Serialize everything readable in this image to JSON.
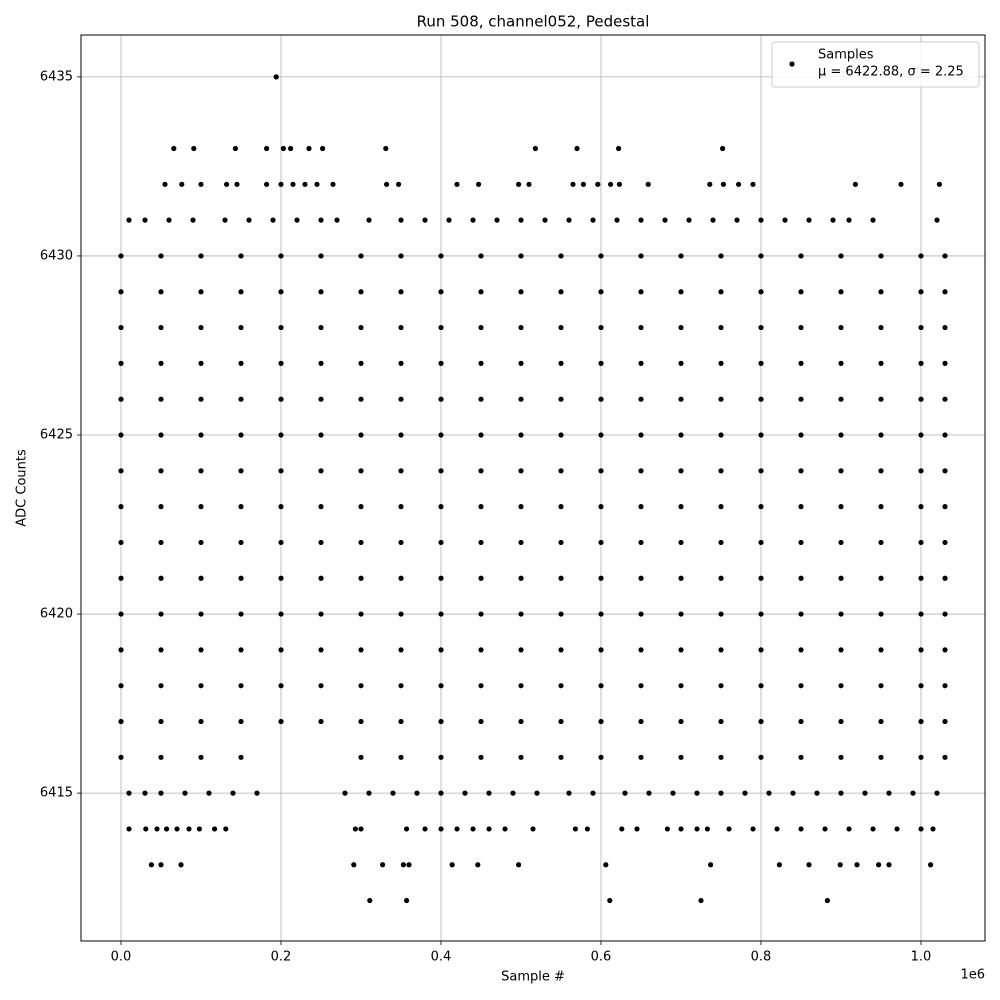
{
  "chart_data": {
    "type": "scatter",
    "title": "Run 508, channel052, Pedestal",
    "xlabel": "Sample #",
    "ylabel": "ADC Counts",
    "x_offset_label": "1e6",
    "xlim": [
      -50000,
      1080000
    ],
    "ylim": [
      6410.87,
      6436.17
    ],
    "xticks": [
      {
        "value": 0,
        "label": "0.0"
      },
      {
        "value": 200000,
        "label": "0.2"
      },
      {
        "value": 400000,
        "label": "0.4"
      },
      {
        "value": 600000,
        "label": "0.6"
      },
      {
        "value": 800000,
        "label": "0.8"
      },
      {
        "value": 1000000,
        "label": "1.0"
      }
    ],
    "yticks": [
      6415,
      6420,
      6425,
      6430,
      6435
    ],
    "grid": true,
    "legend": "upper right",
    "legend_stats": "μ = 6422.88, σ = 2.25",
    "x": [
      311000,
      357000,
      611000,
      725000,
      883000,
      38000,
      50000,
      75000,
      291000,
      327000,
      353000,
      360000,
      414000,
      446000,
      497000,
      606000,
      737000,
      823000,
      860000,
      899000,
      920000,
      947000,
      960000,
      1012000,
      10000,
      31000,
      45000,
      57000,
      70000,
      85000,
      98000,
      117000,
      131000,
      293000,
      300000,
      357000,
      380000,
      400000,
      420000,
      440000,
      460000,
      480000,
      515000,
      568000,
      583000,
      626000,
      645000,
      683000,
      700000,
      720000,
      733000,
      760000,
      790000,
      820000,
      850000,
      880000,
      910000,
      940000,
      970000,
      1000000,
      1015000,
      10000,
      30000,
      50000,
      80000,
      110000,
      140000,
      170000,
      280000,
      310000,
      340000,
      370000,
      400000,
      430000,
      460000,
      490000,
      520000,
      560000,
      590000,
      630000,
      660000,
      690000,
      720000,
      750000,
      780000,
      810000,
      840000,
      870000,
      900000,
      930000,
      960000,
      990000,
      1020000,
      0,
      50000,
      100000,
      150000,
      300000,
      350000,
      400000,
      450000,
      500000,
      550000,
      600000,
      650000,
      700000,
      750000,
      800000,
      850000,
      900000,
      950000,
      1000000,
      1030000,
      0,
      50000,
      100000,
      150000,
      200000,
      250000,
      300000,
      350000,
      400000,
      450000,
      500000,
      550000,
      600000,
      650000,
      700000,
      750000,
      800000,
      850000,
      900000,
      950000,
      1000000,
      1030000,
      0,
      50000,
      100000,
      150000,
      200000,
      250000,
      300000,
      350000,
      400000,
      450000,
      500000,
      550000,
      600000,
      650000,
      700000,
      750000,
      800000,
      850000,
      900000,
      950000,
      1000000,
      1030000,
      0,
      50000,
      100000,
      150000,
      200000,
      250000,
      300000,
      350000,
      400000,
      450000,
      500000,
      550000,
      600000,
      650000,
      700000,
      750000,
      800000,
      850000,
      900000,
      950000,
      1000000,
      1030000,
      0,
      50000,
      100000,
      150000,
      200000,
      250000,
      300000,
      350000,
      400000,
      450000,
      500000,
      550000,
      600000,
      650000,
      700000,
      750000,
      800000,
      850000,
      900000,
      950000,
      1000000,
      1030000,
      0,
      50000,
      100000,
      150000,
      200000,
      250000,
      300000,
      350000,
      400000,
      450000,
      500000,
      550000,
      600000,
      650000,
      700000,
      750000,
      800000,
      850000,
      900000,
      950000,
      1000000,
      1030000,
      0,
      50000,
      100000,
      150000,
      200000,
      250000,
      300000,
      350000,
      400000,
      450000,
      500000,
      550000,
      600000,
      650000,
      700000,
      750000,
      800000,
      850000,
      900000,
      950000,
      1000000,
      1030000,
      0,
      50000,
      100000,
      150000,
      200000,
      250000,
      300000,
      350000,
      400000,
      450000,
      500000,
      550000,
      600000,
      650000,
      700000,
      750000,
      800000,
      850000,
      900000,
      950000,
      1000000,
      1030000,
      0,
      50000,
      100000,
      150000,
      200000,
      250000,
      300000,
      350000,
      400000,
      450000,
      500000,
      550000,
      600000,
      650000,
      700000,
      750000,
      800000,
      850000,
      900000,
      950000,
      1000000,
      1030000,
      0,
      50000,
      100000,
      150000,
      200000,
      250000,
      300000,
      350000,
      400000,
      450000,
      500000,
      550000,
      600000,
      650000,
      700000,
      750000,
      800000,
      850000,
      900000,
      950000,
      1000000,
      1030000,
      0,
      50000,
      100000,
      150000,
      200000,
      250000,
      300000,
      350000,
      400000,
      450000,
      500000,
      550000,
      600000,
      650000,
      700000,
      750000,
      800000,
      850000,
      900000,
      950000,
      1000000,
      1030000,
      0,
      50000,
      100000,
      150000,
      200000,
      250000,
      300000,
      350000,
      400000,
      450000,
      500000,
      550000,
      600000,
      650000,
      700000,
      750000,
      800000,
      850000,
      900000,
      950000,
      1000000,
      1030000,
      0,
      50000,
      100000,
      150000,
      200000,
      250000,
      300000,
      350000,
      400000,
      450000,
      500000,
      550000,
      600000,
      650000,
      700000,
      750000,
      800000,
      850000,
      900000,
      950000,
      1000000,
      1030000,
      0,
      50000,
      100000,
      150000,
      200000,
      250000,
      300000,
      350000,
      400000,
      450000,
      500000,
      550000,
      600000,
      650000,
      700000,
      750000,
      800000,
      850000,
      900000,
      950000,
      1000000,
      1030000,
      0,
      50000,
      100000,
      150000,
      200000,
      250000,
      300000,
      350000,
      400000,
      450000,
      500000,
      550000,
      600000,
      650000,
      700000,
      750000,
      800000,
      850000,
      900000,
      950000,
      1000000,
      1030000,
      10000,
      30000,
      60000,
      90000,
      130000,
      160000,
      190000,
      220000,
      250000,
      270000,
      310000,
      350000,
      380000,
      410000,
      440000,
      470000,
      500000,
      530000,
      560000,
      590000,
      620000,
      650000,
      680000,
      710000,
      740000,
      770000,
      800000,
      830000,
      860000,
      890000,
      910000,
      940000,
      1020000,
      55000,
      76000,
      100000,
      132000,
      145000,
      182000,
      200000,
      215000,
      230000,
      245000,
      265000,
      332000,
      347000,
      420000,
      447000,
      497000,
      510000,
      565000,
      578000,
      596000,
      612000,
      623000,
      659000,
      736000,
      753000,
      772000,
      790000,
      918000,
      975000,
      1023000,
      66000,
      91000,
      143000,
      182000,
      203000,
      212000,
      235000,
      252000,
      331000,
      518000,
      570000,
      622000,
      752000,
      194000
    ],
    "series": [
      {
        "name": "Samples",
        "color": "#000000",
        "values": [
          6412,
          6412,
          6412,
          6412,
          6412,
          6413,
          6413,
          6413,
          6413,
          6413,
          6413,
          6413,
          6413,
          6413,
          6413,
          6413,
          6413,
          6413,
          6413,
          6413,
          6413,
          6413,
          6413,
          6413,
          6414,
          6414,
          6414,
          6414,
          6414,
          6414,
          6414,
          6414,
          6414,
          6414,
          6414,
          6414,
          6414,
          6414,
          6414,
          6414,
          6414,
          6414,
          6414,
          6414,
          6414,
          6414,
          6414,
          6414,
          6414,
          6414,
          6414,
          6414,
          6414,
          6414,
          6414,
          6414,
          6414,
          6414,
          6414,
          6414,
          6414,
          6415,
          6415,
          6415,
          6415,
          6415,
          6415,
          6415,
          6415,
          6415,
          6415,
          6415,
          6415,
          6415,
          6415,
          6415,
          6415,
          6415,
          6415,
          6415,
          6415,
          6415,
          6415,
          6415,
          6415,
          6415,
          6415,
          6415,
          6415,
          6415,
          6415,
          6415,
          6415,
          6416,
          6416,
          6416,
          6416,
          6416,
          6416,
          6416,
          6416,
          6416,
          6416,
          6416,
          6416,
          6416,
          6416,
          6416,
          6416,
          6416,
          6416,
          6416,
          6416,
          6417,
          6417,
          6417,
          6417,
          6417,
          6417,
          6417,
          6417,
          6417,
          6417,
          6417,
          6417,
          6417,
          6417,
          6417,
          6417,
          6417,
          6417,
          6417,
          6417,
          6417,
          6417,
          6418,
          6418,
          6418,
          6418,
          6418,
          6418,
          6418,
          6418,
          6418,
          6418,
          6418,
          6418,
          6418,
          6418,
          6418,
          6418,
          6418,
          6418,
          6418,
          6418,
          6418,
          6418,
          6419,
          6419,
          6419,
          6419,
          6419,
          6419,
          6419,
          6419,
          6419,
          6419,
          6419,
          6419,
          6419,
          6419,
          6419,
          6419,
          6419,
          6419,
          6419,
          6419,
          6419,
          6419,
          6420,
          6420,
          6420,
          6420,
          6420,
          6420,
          6420,
          6420,
          6420,
          6420,
          6420,
          6420,
          6420,
          6420,
          6420,
          6420,
          6420,
          6420,
          6420,
          6420,
          6420,
          6420,
          6421,
          6421,
          6421,
          6421,
          6421,
          6421,
          6421,
          6421,
          6421,
          6421,
          6421,
          6421,
          6421,
          6421,
          6421,
          6421,
          6421,
          6421,
          6421,
          6421,
          6421,
          6421,
          6422,
          6422,
          6422,
          6422,
          6422,
          6422,
          6422,
          6422,
          6422,
          6422,
          6422,
          6422,
          6422,
          6422,
          6422,
          6422,
          6422,
          6422,
          6422,
          6422,
          6422,
          6422,
          6423,
          6423,
          6423,
          6423,
          6423,
          6423,
          6423,
          6423,
          6423,
          6423,
          6423,
          6423,
          6423,
          6423,
          6423,
          6423,
          6423,
          6423,
          6423,
          6423,
          6423,
          6423,
          6424,
          6424,
          6424,
          6424,
          6424,
          6424,
          6424,
          6424,
          6424,
          6424,
          6424,
          6424,
          6424,
          6424,
          6424,
          6424,
          6424,
          6424,
          6424,
          6424,
          6424,
          6424,
          6425,
          6425,
          6425,
          6425,
          6425,
          6425,
          6425,
          6425,
          6425,
          6425,
          6425,
          6425,
          6425,
          6425,
          6425,
          6425,
          6425,
          6425,
          6425,
          6425,
          6425,
          6425,
          6426,
          6426,
          6426,
          6426,
          6426,
          6426,
          6426,
          6426,
          6426,
          6426,
          6426,
          6426,
          6426,
          6426,
          6426,
          6426,
          6426,
          6426,
          6426,
          6426,
          6426,
          6426,
          6427,
          6427,
          6427,
          6427,
          6427,
          6427,
          6427,
          6427,
          6427,
          6427,
          6427,
          6427,
          6427,
          6427,
          6427,
          6427,
          6427,
          6427,
          6427,
          6427,
          6427,
          6427,
          6428,
          6428,
          6428,
          6428,
          6428,
          6428,
          6428,
          6428,
          6428,
          6428,
          6428,
          6428,
          6428,
          6428,
          6428,
          6428,
          6428,
          6428,
          6428,
          6428,
          6428,
          6428,
          6429,
          6429,
          6429,
          6429,
          6429,
          6429,
          6429,
          6429,
          6429,
          6429,
          6429,
          6429,
          6429,
          6429,
          6429,
          6429,
          6429,
          6429,
          6429,
          6429,
          6429,
          6429,
          6430,
          6430,
          6430,
          6430,
          6430,
          6430,
          6430,
          6430,
          6430,
          6430,
          6430,
          6430,
          6430,
          6430,
          6430,
          6430,
          6430,
          6430,
          6430,
          6430,
          6430,
          6430,
          6431,
          6431,
          6431,
          6431,
          6431,
          6431,
          6431,
          6431,
          6431,
          6431,
          6431,
          6431,
          6431,
          6431,
          6431,
          6431,
          6431,
          6431,
          6431,
          6431,
          6431,
          6431,
          6431,
          6431,
          6431,
          6431,
          6431,
          6431,
          6431,
          6431,
          6431,
          6431,
          6431,
          6432,
          6432,
          6432,
          6432,
          6432,
          6432,
          6432,
          6432,
          6432,
          6432,
          6432,
          6432,
          6432,
          6432,
          6432,
          6432,
          6432,
          6432,
          6432,
          6432,
          6432,
          6432,
          6432,
          6432,
          6432,
          6432,
          6432,
          6432,
          6432,
          6432,
          6433,
          6433,
          6433,
          6433,
          6433,
          6433,
          6433,
          6433,
          6433,
          6433,
          6433,
          6433,
          6433,
          6435
        ]
      }
    ]
  }
}
